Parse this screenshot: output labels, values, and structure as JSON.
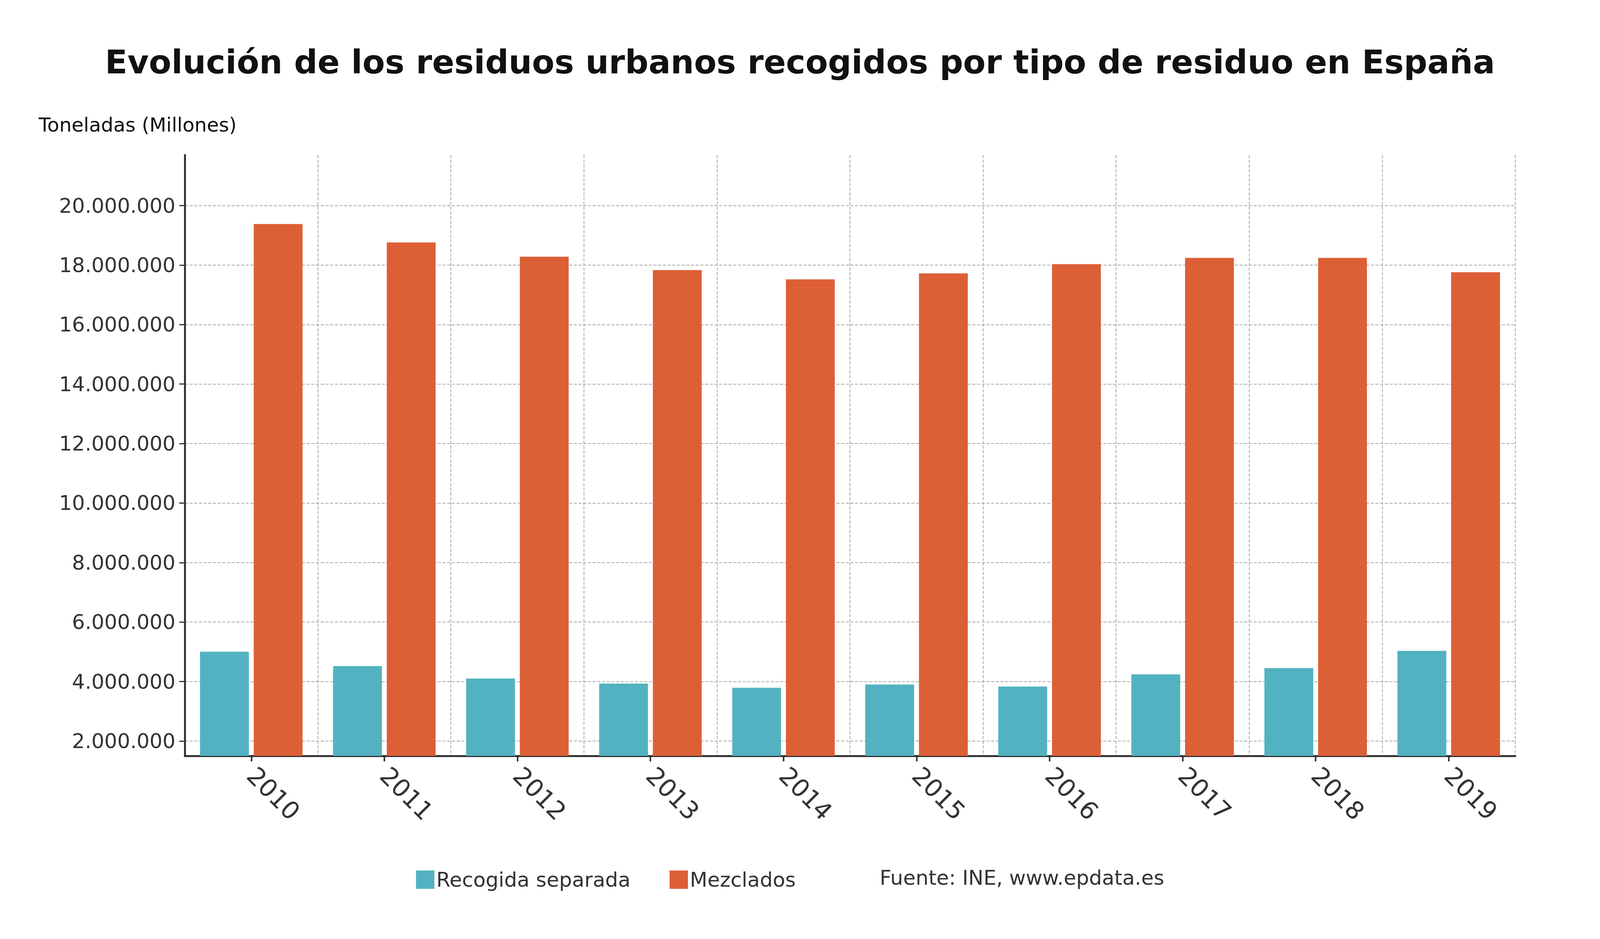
{
  "chart_data": {
    "type": "bar",
    "title": "Evolución de los residuos urbanos recogidos por tipo de residuo en España",
    "y_label": "Toneladas (Millones)",
    "source": "Fuente: INE, www.epdata.es",
    "categories": [
      "2010",
      "2011",
      "2012",
      "2013",
      "2014",
      "2015",
      "2016",
      "2017",
      "2018",
      "2019"
    ],
    "series": [
      {
        "name": "Recogida separada",
        "color": "#52b2c1",
        "values": [
          5000000,
          4520000,
          4100000,
          3930000,
          3790000,
          3900000,
          3830000,
          4240000,
          4450000,
          5030000
        ]
      },
      {
        "name": "Mezclados",
        "color": "#dd5f36",
        "values": [
          19380000,
          18760000,
          18280000,
          17830000,
          17520000,
          17720000,
          18030000,
          18240000,
          18240000,
          17760000
        ]
      }
    ],
    "ylim": [
      1500000,
      21700000
    ],
    "yticks": [
      {
        "value": 2000000,
        "label": "2.000.000"
      },
      {
        "value": 4000000,
        "label": "4.000.000"
      },
      {
        "value": 6000000,
        "label": "6.000.000"
      },
      {
        "value": 8000000,
        "label": "8.000.000"
      },
      {
        "value": 10000000,
        "label": "10.000.000"
      },
      {
        "value": 12000000,
        "label": "12.000.000"
      },
      {
        "value": 14000000,
        "label": "14.000.000"
      },
      {
        "value": 16000000,
        "label": "16.000.000"
      },
      {
        "value": 18000000,
        "label": "18.000.000"
      },
      {
        "value": 20000000,
        "label": "20.000.000"
      }
    ],
    "grid": true,
    "legend": "bottom"
  }
}
